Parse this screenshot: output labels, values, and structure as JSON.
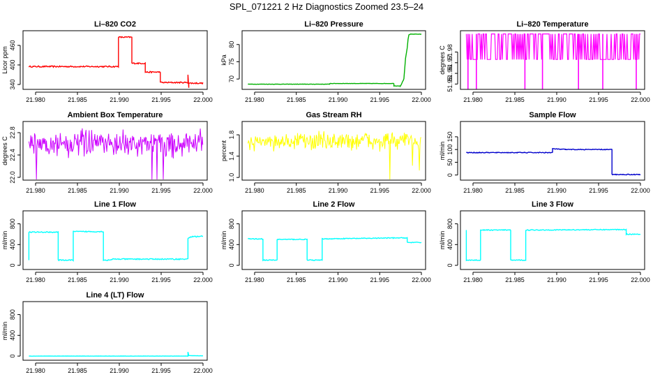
{
  "title": "SPL_071221  2 Hz Diagnostics Zoomed 23.5–24",
  "chart_data": [
    {
      "type": "line",
      "title": "Li–820 CO2",
      "ylabel": "Licor ppm",
      "color": "#ff0000",
      "xlim": [
        21.9785,
        22.0005
      ],
      "ylim": [
        325,
        505
      ],
      "yticks": [
        340,
        400,
        460
      ],
      "xticks": [
        21.98,
        21.985,
        21.99,
        21.995,
        22.0
      ],
      "xticklabels": [
        "21.980",
        "21.985",
        "21.990",
        "21.995",
        "22.000"
      ],
      "noise": 2,
      "series": [
        {
          "name": "CO2",
          "x": [
            21.9792,
            21.9899,
            21.9899,
            21.9915,
            21.9915,
            21.9931,
            21.9931,
            21.9949,
            21.9949,
            21.9982,
            21.9982,
            21.9983,
            21.9983,
            22.0
          ]
        }
      ],
      "points": [
        [
          21.9792,
          395
        ],
        [
          21.9899,
          395
        ],
        [
          21.9899,
          485
        ],
        [
          21.9915,
          485
        ],
        [
          21.9915,
          405
        ],
        [
          21.9931,
          405
        ],
        [
          21.9931,
          378
        ],
        [
          21.9949,
          378
        ],
        [
          21.9949,
          346
        ],
        [
          21.9982,
          346
        ],
        [
          21.9982,
          370
        ],
        [
          21.9983,
          330
        ],
        [
          21.9983,
          344
        ],
        [
          22.0,
          344
        ]
      ]
    },
    {
      "type": "line",
      "title": "Li–820 Pressure",
      "ylabel": "kPa",
      "color": "#00b000",
      "xlim": [
        21.9785,
        22.0005
      ],
      "ylim": [
        67,
        84
      ],
      "yticks": [
        70,
        75,
        80
      ],
      "xticks": [
        21.98,
        21.985,
        21.99,
        21.995,
        22.0
      ],
      "xticklabels": [
        "21.980",
        "21.985",
        "21.990",
        "21.995",
        "22.000"
      ],
      "noise": 0.05,
      "points": [
        [
          21.9792,
          68.5
        ],
        [
          21.989,
          68.5
        ],
        [
          21.989,
          68.7
        ],
        [
          21.9967,
          68.7
        ],
        [
          21.9967,
          68.0
        ],
        [
          21.9975,
          68.0
        ],
        [
          21.9979,
          70
        ],
        [
          21.9981,
          76
        ],
        [
          21.9983,
          79
        ],
        [
          21.9984,
          81.5
        ],
        [
          21.9985,
          82.8
        ],
        [
          21.9987,
          83
        ],
        [
          22.0,
          83
        ]
      ]
    },
    {
      "type": "spiky",
      "title": "Li–820 Temperature",
      "ylabel": "degrees C",
      "color": "#ff00ff",
      "xlim": [
        21.9785,
        22.0005
      ],
      "ylim": [
        51.945,
        52.0
      ],
      "yticks": [
        51.95,
        51.96,
        51.97,
        51.98
      ],
      "yticklabels": [
        "51.95",
        "51.96",
        "51.97",
        "51.98"
      ],
      "xticks": [
        21.98,
        21.985,
        21.99,
        21.995,
        22.0
      ],
      "xticklabels": [
        "21.980",
        "21.985",
        "21.990",
        "21.995",
        "22.000"
      ],
      "levels": [
        51.973,
        51.997
      ],
      "dips": [
        21.9794,
        21.9804,
        21.9862,
        21.9883,
        21.9926,
        21.9955,
        21.9995
      ],
      "dip_level": 51.945
    },
    {
      "type": "noise",
      "title": "Ambient Box Temperature",
      "ylabel": "degrees C",
      "color": "#cc00ff",
      "xlim": [
        21.9785,
        22.0005
      ],
      "ylim": [
        21.95,
        23.0
      ],
      "yticks": [
        22.0,
        22.4,
        22.8
      ],
      "yticklabels": [
        "22.0",
        "22.4",
        "22.8"
      ],
      "xticks": [
        21.98,
        21.985,
        21.99,
        21.995,
        22.0
      ],
      "xticklabels": [
        "21.980",
        "21.985",
        "21.990",
        "21.995",
        "22.000"
      ],
      "center": 22.6,
      "spread": 0.32
    },
    {
      "type": "noise",
      "title": "Gas Stream RH",
      "ylabel": "percent",
      "color": "#ffff00",
      "xlim": [
        21.9785,
        22.0005
      ],
      "ylim": [
        0.95,
        2.05
      ],
      "yticks": [
        1.0,
        1.4,
        1.8
      ],
      "yticklabels": [
        "1.0",
        "1.4",
        "1.8"
      ],
      "xticks": [
        21.98,
        21.985,
        21.99,
        21.995,
        22.0
      ],
      "xticklabels": [
        "21.980",
        "21.985",
        "21.990",
        "21.995",
        "22.000"
      ],
      "center": 1.68,
      "spread": 0.25
    },
    {
      "type": "line",
      "title": "Sample Flow",
      "ylabel": "ml/min",
      "color": "#0000cc",
      "xlim": [
        21.9785,
        22.0005
      ],
      "ylim": [
        -20,
        210
      ],
      "yticks": [
        0,
        50,
        100,
        150
      ],
      "xticks": [
        21.98,
        21.985,
        21.99,
        21.995,
        22.0
      ],
      "xticklabels": [
        "21.980",
        "21.985",
        "21.990",
        "21.995",
        "22.000"
      ],
      "noise": 1.5,
      "points": [
        [
          21.9792,
          88
        ],
        [
          21.9895,
          88
        ],
        [
          21.9895,
          103
        ],
        [
          21.9911,
          100
        ],
        [
          21.9966,
          100
        ],
        [
          21.9966,
          2
        ],
        [
          22.0,
          2
        ]
      ]
    },
    {
      "type": "line",
      "title": "Line 1 Flow",
      "ylabel": "ml/min",
      "color": "#00ffff",
      "xlim": [
        21.9785,
        22.0005
      ],
      "ylim": [
        -80,
        1050
      ],
      "yticks": [
        0,
        400,
        800
      ],
      "xticks": [
        21.98,
        21.985,
        21.99,
        21.995,
        22.0
      ],
      "xticklabels": [
        "21.980",
        "21.985",
        "21.990",
        "21.995",
        "22.000"
      ],
      "noise": 10,
      "points": [
        [
          21.9792,
          100
        ],
        [
          21.9792,
          640
        ],
        [
          21.9827,
          640
        ],
        [
          21.9827,
          100
        ],
        [
          21.9845,
          100
        ],
        [
          21.9845,
          650
        ],
        [
          21.9881,
          650
        ],
        [
          21.9881,
          100
        ],
        [
          21.9891,
          100
        ],
        [
          21.9891,
          120
        ],
        [
          21.9982,
          120
        ],
        [
          21.9982,
          520
        ],
        [
          21.9985,
          550
        ],
        [
          22.0,
          560
        ]
      ]
    },
    {
      "type": "line",
      "title": "Line 2 Flow",
      "ylabel": "ml/min",
      "color": "#00ffff",
      "xlim": [
        21.9785,
        22.0005
      ],
      "ylim": [
        -80,
        1050
      ],
      "yticks": [
        0,
        400,
        800
      ],
      "xticks": [
        21.98,
        21.985,
        21.99,
        21.995,
        22.0
      ],
      "xticklabels": [
        "21.980",
        "21.985",
        "21.990",
        "21.995",
        "22.000"
      ],
      "noise": 8,
      "points": [
        [
          21.9792,
          510
        ],
        [
          21.981,
          510
        ],
        [
          21.981,
          100
        ],
        [
          21.9827,
          100
        ],
        [
          21.9827,
          500
        ],
        [
          21.9863,
          500
        ],
        [
          21.9863,
          100
        ],
        [
          21.9881,
          100
        ],
        [
          21.9881,
          510
        ],
        [
          21.9983,
          530
        ],
        [
          21.9983,
          440
        ],
        [
          22.0,
          440
        ]
      ]
    },
    {
      "type": "line",
      "title": "Line 3 Flow",
      "ylabel": "ml/min",
      "color": "#00ffff",
      "xlim": [
        21.9785,
        22.0005
      ],
      "ylim": [
        -80,
        1050
      ],
      "yticks": [
        0,
        400,
        800
      ],
      "xticks": [
        21.98,
        21.985,
        21.99,
        21.995,
        22.0
      ],
      "xticklabels": [
        "21.980",
        "21.985",
        "21.990",
        "21.995",
        "22.000"
      ],
      "noise": 8,
      "points": [
        [
          21.9792,
          680
        ],
        [
          21.9792,
          100
        ],
        [
          21.9809,
          100
        ],
        [
          21.9809,
          680
        ],
        [
          21.9845,
          680
        ],
        [
          21.9845,
          100
        ],
        [
          21.9863,
          100
        ],
        [
          21.9863,
          680
        ],
        [
          21.9983,
          690
        ],
        [
          21.9983,
          600
        ],
        [
          22.0,
          600
        ]
      ]
    },
    {
      "type": "line",
      "title": "Line 4 (LT) Flow",
      "ylabel": "ml/min",
      "color": "#00ffff",
      "xlim": [
        21.9785,
        22.0005
      ],
      "ylim": [
        -80,
        1050
      ],
      "yticks": [
        0,
        400,
        800
      ],
      "xticks": [
        21.98,
        21.985,
        21.99,
        21.995,
        22.0
      ],
      "xticklabels": [
        "21.980",
        "21.985",
        "21.990",
        "21.995",
        "22.000"
      ],
      "noise": 2,
      "points": [
        [
          21.9792,
          0
        ],
        [
          21.9982,
          0
        ],
        [
          21.9982,
          80
        ],
        [
          21.9983,
          10
        ],
        [
          22.0,
          5
        ]
      ]
    }
  ]
}
